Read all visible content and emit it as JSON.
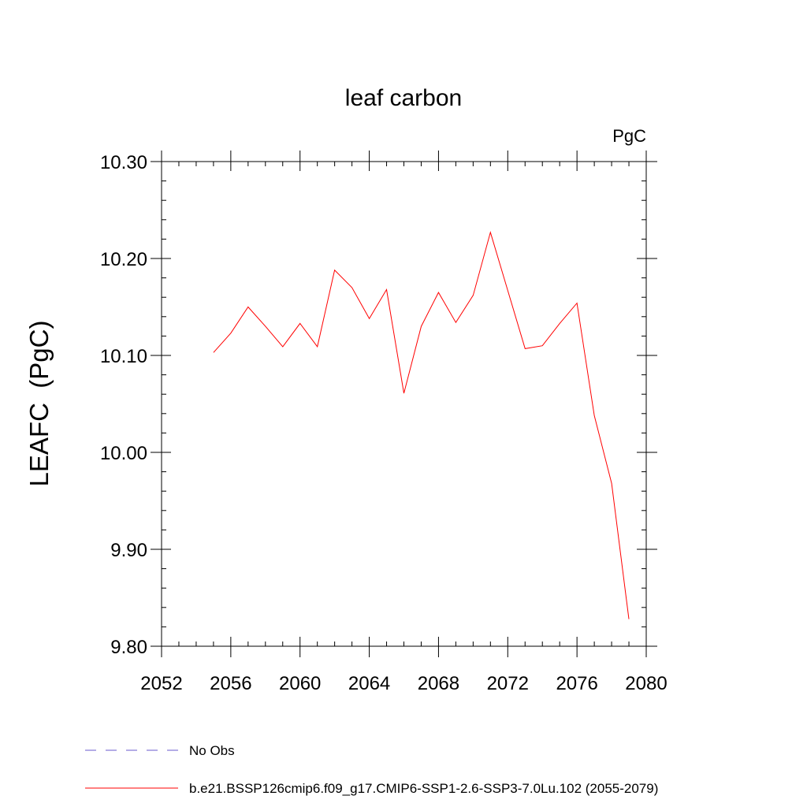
{
  "chart_data": {
    "type": "line",
    "title": "leaf carbon",
    "units": "PgC",
    "ylabel": "LEAFC  (PgC)",
    "xlabel": "",
    "xlim": [
      2052,
      2080
    ],
    "ylim": [
      9.8,
      10.3
    ],
    "xticks": [
      2052,
      2056,
      2060,
      2064,
      2068,
      2072,
      2076,
      2080
    ],
    "xtick_labels": [
      "2052",
      "2056",
      "2060",
      "2064",
      "2068",
      "2072",
      "2076",
      "2080"
    ],
    "yticks": [
      9.8,
      9.9,
      10.0,
      10.1,
      10.2,
      10.3
    ],
    "ytick_labels": [
      "9.80",
      "9.90",
      "10.00",
      "10.10",
      "10.20",
      "10.30"
    ],
    "grid": false,
    "legend_position": "bottom-left",
    "series": [
      {
        "name": "No Obs",
        "color": "#6a5acd",
        "dash": "dashed",
        "x": [],
        "y": []
      },
      {
        "name": "b.e21.BSSP126cmip6.f09_g17.CMIP6-SSP1-2.6-SSP3-7.0Lu.102 (2055-2079)",
        "color": "#ff0000",
        "dash": "solid",
        "x": [
          2055,
          2056,
          2057,
          2058,
          2059,
          2060,
          2061,
          2062,
          2063,
          2064,
          2065,
          2066,
          2067,
          2068,
          2069,
          2070,
          2071,
          2072,
          2073,
          2074,
          2075,
          2076,
          2077,
          2078,
          2079
        ],
        "y": [
          10.103,
          10.123,
          10.15,
          10.13,
          10.109,
          10.133,
          10.109,
          10.188,
          10.17,
          10.138,
          10.168,
          10.061,
          10.13,
          10.165,
          10.134,
          10.162,
          10.227,
          10.167,
          10.107,
          10.11,
          10.133,
          10.154,
          10.038,
          9.968,
          9.828
        ]
      }
    ]
  }
}
